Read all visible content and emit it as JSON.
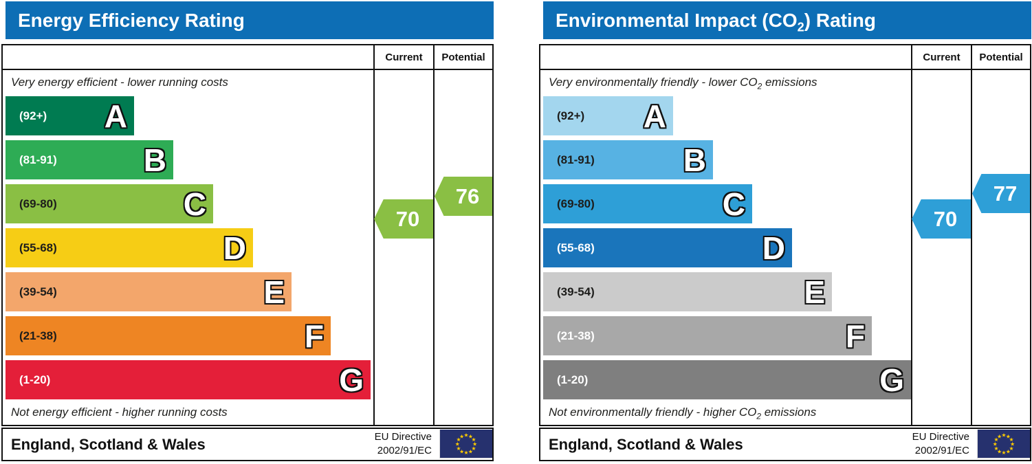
{
  "header_color": "#0d6eb5",
  "chart_data": [
    {
      "type": "bar",
      "title": {
        "pre": "Energy Efficiency Rating",
        "sub": "",
        "post": ""
      },
      "columns": {
        "current": "Current",
        "potential": "Potential"
      },
      "top_note": {
        "pre": "Very energy efficient - lower running costs",
        "sub": "",
        "post": ""
      },
      "bottom_note": {
        "pre": "Not energy efficient - higher running costs",
        "sub": "",
        "post": ""
      },
      "bands": [
        {
          "grade": "A",
          "range_label": "(92+)",
          "min": 92,
          "max": 100,
          "color": "#007b51",
          "width_pct": 35
        },
        {
          "grade": "B",
          "range_label": "(81-91)",
          "min": 81,
          "max": 91,
          "color": "#2eac55",
          "width_pct": 46
        },
        {
          "grade": "C",
          "range_label": "(69-80)",
          "min": 69,
          "max": 80,
          "color": "#8abf44",
          "width_pct": 57
        },
        {
          "grade": "D",
          "range_label": "(55-68)",
          "min": 55,
          "max": 68,
          "color": "#f6cd15",
          "width_pct": 67
        },
        {
          "grade": "E",
          "range_label": "(39-54)",
          "min": 39,
          "max": 54,
          "color": "#f3a66b",
          "width_pct": 78
        },
        {
          "grade": "F",
          "range_label": "(21-38)",
          "min": 21,
          "max": 38,
          "color": "#ee8523",
          "width_pct": 89
        },
        {
          "grade": "G",
          "range_label": "(1-20)",
          "min": 1,
          "max": 20,
          "color": "#e41f39",
          "width_pct": 99
        }
      ],
      "current": {
        "label": "70",
        "value": 70,
        "band": "C",
        "color": "#8abf44"
      },
      "potential": {
        "label": "76",
        "value": 76,
        "band": "C",
        "color": "#8abf44"
      },
      "footer": {
        "region": "England, Scotland & Wales",
        "directive_line1": "EU Directive",
        "directive_line2": "2002/91/EC",
        "flag_icon": "eu-flag"
      }
    },
    {
      "type": "bar",
      "title": {
        "pre": "Environmental Impact (CO",
        "sub": "2",
        "post": ") Rating"
      },
      "columns": {
        "current": "Current",
        "potential": "Potential"
      },
      "top_note": {
        "pre": "Very environmentally friendly - lower CO",
        "sub": "2",
        "post": " emissions"
      },
      "bottom_note": {
        "pre": "Not environmentally friendly - higher CO",
        "sub": "2",
        "post": " emissions"
      },
      "bands": [
        {
          "grade": "A",
          "range_label": "(92+)",
          "min": 92,
          "max": 100,
          "color": "#a3d6ee",
          "width_pct": 35
        },
        {
          "grade": "B",
          "range_label": "(81-91)",
          "min": 81,
          "max": 91,
          "color": "#57b2e3",
          "width_pct": 46
        },
        {
          "grade": "C",
          "range_label": "(69-80)",
          "min": 69,
          "max": 80,
          "color": "#2e9fd7",
          "width_pct": 57
        },
        {
          "grade": "D",
          "range_label": "(55-68)",
          "min": 55,
          "max": 68,
          "color": "#1a75bb",
          "width_pct": 67
        },
        {
          "grade": "E",
          "range_label": "(39-54)",
          "min": 39,
          "max": 54,
          "color": "#cbcbcb",
          "width_pct": 78
        },
        {
          "grade": "F",
          "range_label": "(21-38)",
          "min": 21,
          "max": 38,
          "color": "#a8a8a8",
          "width_pct": 89
        },
        {
          "grade": "G",
          "range_label": "(1-20)",
          "min": 1,
          "max": 20,
          "color": "#7f7f7f",
          "width_pct": 99
        }
      ],
      "current": {
        "label": "70",
        "value": 70,
        "band": "C",
        "color": "#2e9fd7"
      },
      "potential": {
        "label": "77",
        "value": 77,
        "band": "C",
        "color": "#2e9fd7"
      },
      "footer": {
        "region": "England, Scotland & Wales",
        "directive_line1": "EU Directive",
        "directive_line2": "2002/91/EC",
        "flag_icon": "eu-flag"
      }
    }
  ]
}
